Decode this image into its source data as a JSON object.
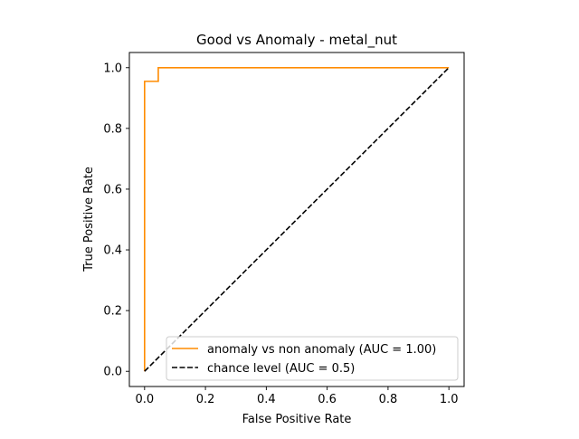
{
  "chart_data": {
    "type": "line",
    "title": "Good vs Anomaly - metal_nut",
    "xlabel": "False Positive Rate",
    "ylabel": "True Positive Rate",
    "xlim": [
      -0.05,
      1.05
    ],
    "ylim": [
      -0.05,
      1.05
    ],
    "xticks": [
      "0.0",
      "0.2",
      "0.4",
      "0.6",
      "0.8",
      "1.0"
    ],
    "yticks": [
      "0.0",
      "0.2",
      "0.4",
      "0.6",
      "0.8",
      "1.0"
    ],
    "grid": false,
    "legend_position": "lower-right",
    "series": [
      {
        "name": "anomaly vs non anomaly (AUC = 1.00)",
        "color": "#ff8c00",
        "style": "solid",
        "x": [
          0.0,
          0.0,
          0.0,
          0.045,
          0.045,
          1.0
        ],
        "y": [
          0.0,
          0.0,
          0.955,
          0.955,
          1.0,
          1.0
        ]
      },
      {
        "name": "chance level (AUC = 0.5)",
        "color": "#000000",
        "style": "dashed",
        "x": [
          0.0,
          1.0
        ],
        "y": [
          0.0,
          1.0
        ]
      }
    ]
  }
}
